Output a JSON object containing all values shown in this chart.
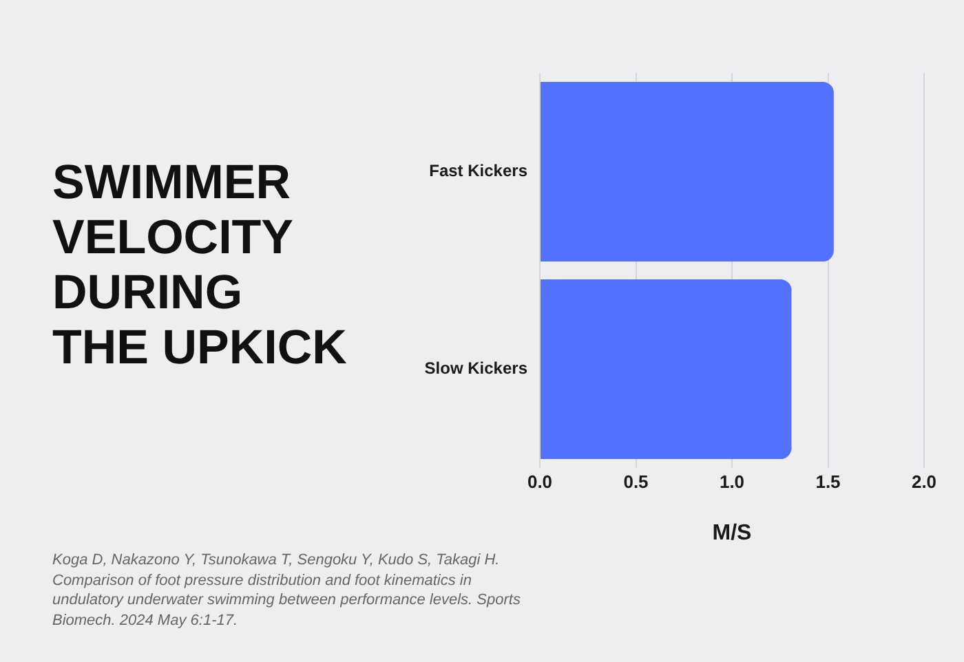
{
  "chart_data": {
    "type": "bar",
    "orientation": "horizontal",
    "title": "SWIMMER VELOCITY DURING THE UPKICK",
    "xlabel": "M/S",
    "categories": [
      "Fast Kickers",
      "Slow Kickers"
    ],
    "values": [
      1.53,
      1.31
    ],
    "color": "#5271ff",
    "xlim": [
      0,
      2
    ],
    "xticks": [
      {
        "value": 0,
        "label": "0.0"
      },
      0.5,
      {
        "value": 1,
        "label": "1.0"
      },
      1.5,
      {
        "value": 2,
        "label": "2.0"
      }
    ],
    "grid": "x",
    "annotations": [
      "Koga D, Nakazono Y, Tsunokawa T, Sengoku Y, Kudo S, Takagi H. Comparison of foot pressure distribution and foot kinematics in undulatory underwater swimming between performance levels. Sports Biomech. 2024 May 6:1-17."
    ]
  }
}
